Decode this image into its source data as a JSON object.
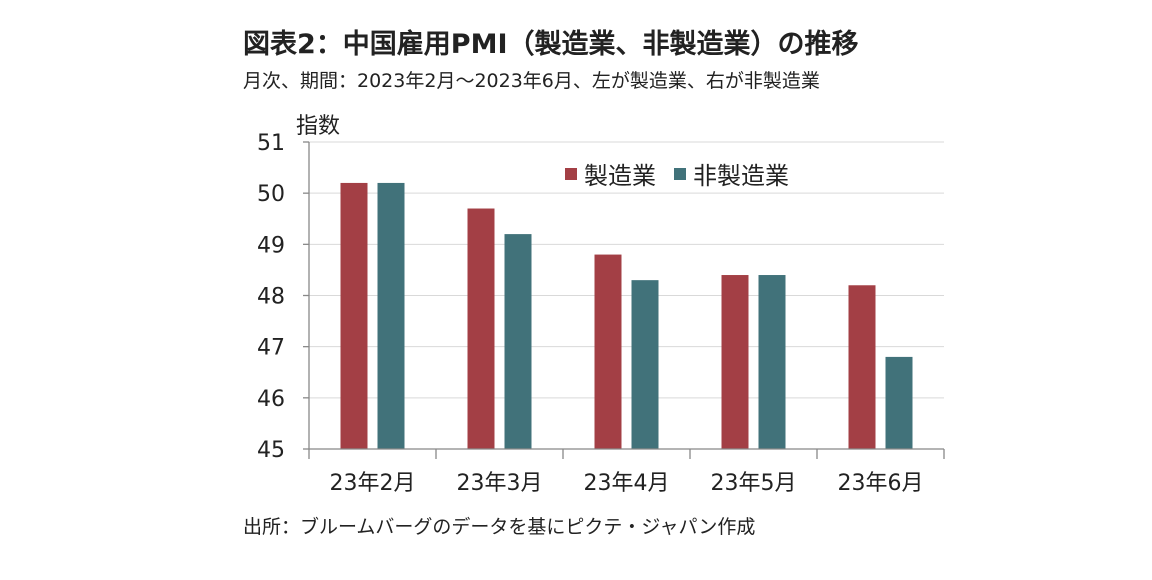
{
  "title": "図表2：中国雇用PMI（製造業、非製造業）の推移",
  "subtitle": "月次、期間：2023年2月～2023年6月、左が製造業、右が非製造業",
  "source": "出所：ブルームバーグのデータを基にピクテ・ジャパン作成",
  "chart_data": {
    "type": "bar",
    "title": "図表2：中国雇用PMI（製造業、非製造業）の推移",
    "ylabel": "指数",
    "xlabel": "",
    "categories": [
      "23年2月",
      "23年3月",
      "23年4月",
      "23年5月",
      "23年6月"
    ],
    "series": [
      {
        "name": "製造業",
        "color": "#a33f45",
        "values": [
          50.2,
          49.7,
          48.8,
          48.4,
          48.2
        ]
      },
      {
        "name": "非製造業",
        "color": "#41727a",
        "values": [
          50.2,
          49.2,
          48.3,
          48.4,
          46.8
        ]
      }
    ],
    "ylim": [
      45,
      51
    ],
    "yticks": [
      45,
      46,
      47,
      48,
      49,
      50,
      51
    ],
    "grid": true,
    "legend_position": "top-right"
  }
}
